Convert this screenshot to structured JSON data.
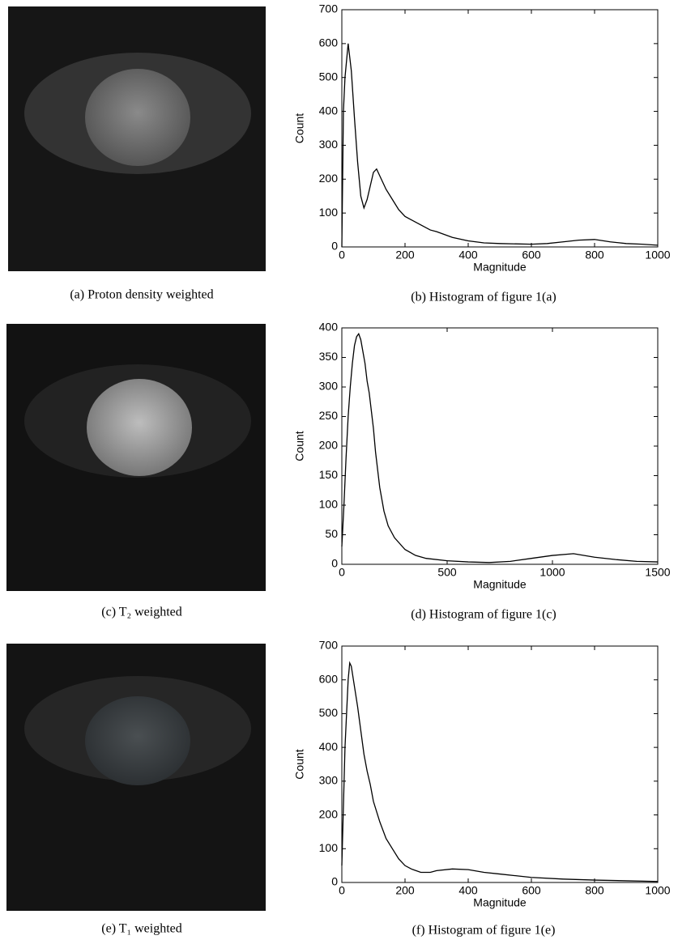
{
  "image_captions": [
    "(a)  Proton density weighted",
    "(c)  T₂ weighted",
    "(e)  T₁ weighted"
  ],
  "chart_data": [
    {
      "type": "line",
      "caption": "(b) Histogram of figure 1(a)",
      "x_label": "Magnitude",
      "y_label": "Count",
      "color": "#000000",
      "xlim": [
        0,
        1000
      ],
      "ylim": [
        0,
        700
      ],
      "xticks": [
        0,
        200,
        400,
        600,
        800,
        1000
      ],
      "yticks": [
        0,
        100,
        200,
        300,
        400,
        500,
        600,
        700
      ],
      "x": [
        0,
        5,
        10,
        20,
        30,
        40,
        50,
        60,
        70,
        80,
        90,
        100,
        110,
        120,
        140,
        160,
        180,
        200,
        220,
        250,
        280,
        300,
        350,
        400,
        450,
        500,
        600,
        650,
        700,
        750,
        800,
        850,
        900,
        950,
        1000
      ],
      "values": [
        0,
        400,
        500,
        600,
        520,
        380,
        250,
        150,
        115,
        140,
        180,
        220,
        230,
        210,
        170,
        140,
        110,
        90,
        80,
        65,
        50,
        45,
        28,
        18,
        12,
        10,
        8,
        10,
        15,
        20,
        22,
        15,
        10,
        8,
        5
      ]
    },
    {
      "type": "line",
      "caption": "(d) Histogram of figure 1(c)",
      "x_label": "Magnitude",
      "y_label": "Count",
      "color": "#000000",
      "xlim": [
        0,
        1500
      ],
      "ylim": [
        0,
        400
      ],
      "xticks": [
        0,
        500,
        1000,
        1500
      ],
      "yticks": [
        0,
        50,
        100,
        150,
        200,
        250,
        300,
        350,
        400
      ],
      "x": [
        0,
        10,
        20,
        30,
        40,
        50,
        60,
        70,
        80,
        90,
        100,
        110,
        120,
        130,
        140,
        150,
        160,
        180,
        200,
        220,
        250,
        300,
        350,
        400,
        500,
        600,
        700,
        800,
        900,
        1000,
        1100,
        1200,
        1300,
        1400,
        1500
      ],
      "values": [
        30,
        100,
        180,
        250,
        300,
        340,
        370,
        385,
        390,
        380,
        360,
        340,
        310,
        290,
        260,
        230,
        190,
        130,
        90,
        65,
        45,
        25,
        15,
        10,
        6,
        4,
        3,
        5,
        10,
        15,
        18,
        12,
        8,
        5,
        4
      ]
    },
    {
      "type": "line",
      "caption": "(f) Histogram of figure 1(e)",
      "x_label": "Magnitude",
      "y_label": "Count",
      "color": "#000000",
      "xlim": [
        0,
        1000
      ],
      "ylim": [
        0,
        700
      ],
      "xticks": [
        0,
        200,
        400,
        600,
        800,
        1000
      ],
      "yticks": [
        0,
        100,
        200,
        300,
        400,
        500,
        600,
        700
      ],
      "x": [
        0,
        10,
        20,
        25,
        30,
        40,
        50,
        60,
        70,
        80,
        90,
        100,
        120,
        140,
        160,
        180,
        200,
        220,
        250,
        280,
        300,
        350,
        400,
        450,
        500,
        550,
        600,
        700,
        800,
        900,
        1000
      ],
      "values": [
        50,
        400,
        600,
        650,
        640,
        580,
        520,
        450,
        380,
        330,
        290,
        240,
        180,
        130,
        100,
        70,
        50,
        40,
        30,
        30,
        35,
        40,
        38,
        30,
        25,
        20,
        15,
        10,
        7,
        5,
        3
      ]
    }
  ]
}
